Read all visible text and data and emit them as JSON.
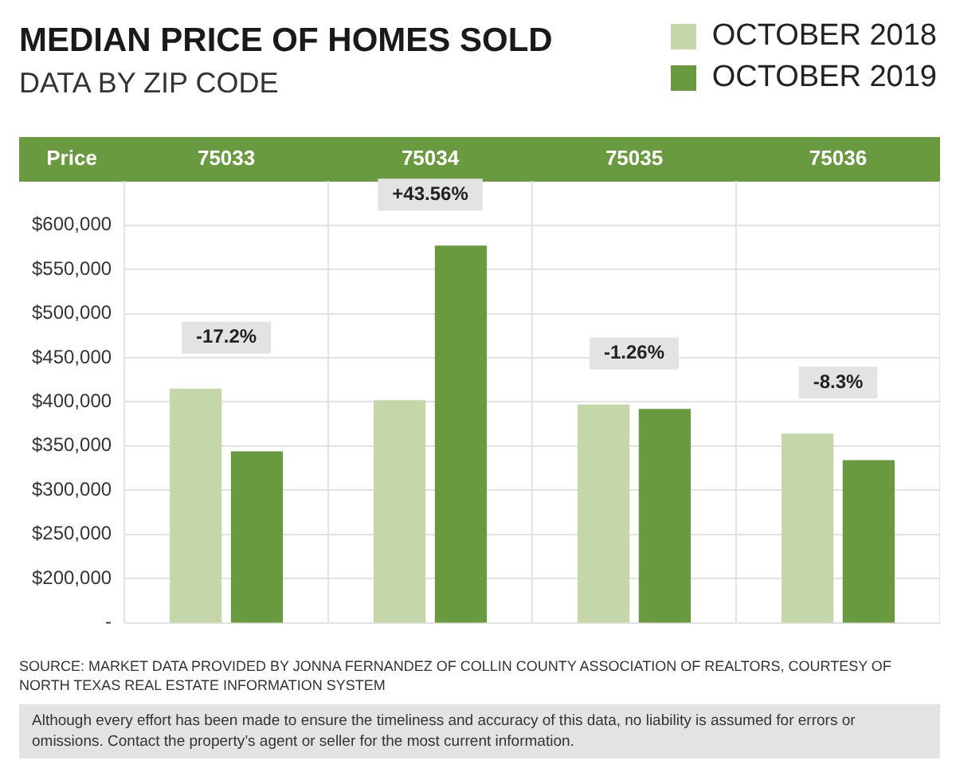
{
  "chart_data": {
    "type": "bar",
    "title": "MEDIAN PRICE OF HOMES SOLD",
    "subtitle": "DATA BY ZIP CODE",
    "ylabel": "Price",
    "categories": [
      "75033",
      "75034",
      "75035",
      "75036"
    ],
    "series": [
      {
        "name": "OCTOBER 2018",
        "color": "#c5d6a8",
        "values": [
          415000,
          402000,
          397000,
          364000
        ]
      },
      {
        "name": "OCTOBER 2019",
        "color": "#6a9a3f",
        "values": [
          344000,
          577000,
          392000,
          334000
        ]
      }
    ],
    "ylim": [
      150000,
      650000
    ],
    "yticks": [
      {
        "value": 150000,
        "label": "-"
      },
      {
        "value": 200000,
        "label": "$200,000"
      },
      {
        "value": 250000,
        "label": "$250,000"
      },
      {
        "value": 300000,
        "label": "$300,000"
      },
      {
        "value": 350000,
        "label": "$350,000"
      },
      {
        "value": 400000,
        "label": "$400,000"
      },
      {
        "value": 450000,
        "label": "$450,000"
      },
      {
        "value": 500000,
        "label": "$500,000"
      },
      {
        "value": 550000,
        "label": "$550,000"
      },
      {
        "value": 600000,
        "label": "$600,000"
      }
    ],
    "grid": true,
    "legend": "top right",
    "annotations": [
      "-17.2%",
      "+43.56%",
      "-1.26%",
      "-8.3%",
      "SOURCE: MARKET DATA PROVIDED BY JONNA FERNANDEZ OF COLLIN COUNTY ASSOCIATION OF REALTORS, COURTESY OF NORTH TEXAS REAL ESTATE INFORMATION SYSTEM",
      "Although every effort has been made to ensure the timeliness and accuracy of this data, no liability is assumed for errors or omissions. Contact the property’s agent or seller for the most current information."
    ]
  }
}
